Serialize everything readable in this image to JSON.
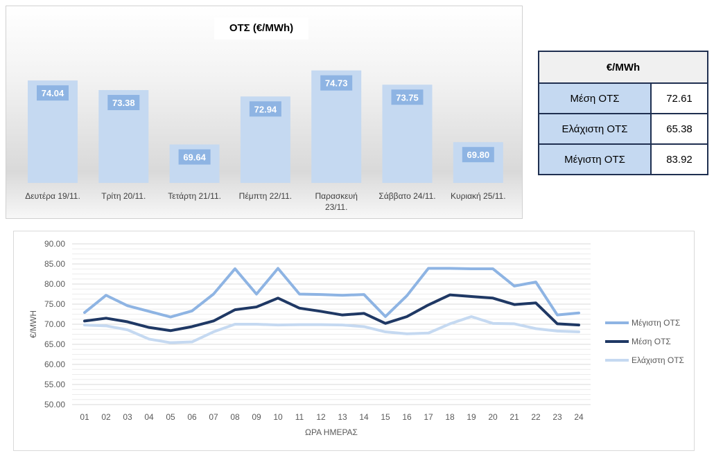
{
  "bar_chart": {
    "title": "ΟΤΣ (€/MWh)",
    "bar_color": "#c5d9f1",
    "label_bg": "#8eb4e3",
    "label_color": "#ffffff"
  },
  "summary_table": {
    "header": "€/MWh",
    "rows": [
      {
        "label": "Μέση ΟΤΣ",
        "value": "72.61"
      },
      {
        "label": "Ελάχιστη ΟΤΣ",
        "value": "65.38"
      },
      {
        "label": "Μέγιστη ΟΤΣ",
        "value": "83.92"
      }
    ]
  },
  "chart_data": [
    {
      "type": "bar",
      "title": "ΟΤΣ (€/MWh)",
      "categories": [
        "Δευτέρα 19/11.",
        "Τρίτη 20/11.",
        "Τετάρτη 21/11.",
        "Πέμπτη 22/11.",
        "Παρασκευή 23/11.",
        "Σάββατο 24/11.",
        "Κυριακή 25/11."
      ],
      "values": [
        74.04,
        73.38,
        69.64,
        72.94,
        74.73,
        73.75,
        69.8
      ],
      "ylim": [
        67,
        76
      ],
      "grid": false,
      "legend": "none"
    },
    {
      "type": "line",
      "xlabel": "ΩΡΑ ΗΜΕΡΑΣ",
      "ylabel": "€/MWH",
      "ylim": [
        50,
        90
      ],
      "yticks": [
        "50.00",
        "55.00",
        "60.00",
        "65.00",
        "70.00",
        "75.00",
        "80.00",
        "85.00",
        "90.00"
      ],
      "categories": [
        "01",
        "02",
        "03",
        "04",
        "05",
        "06",
        "07",
        "08",
        "09",
        "10",
        "11",
        "12",
        "13",
        "14",
        "15",
        "16",
        "17",
        "18",
        "19",
        "20",
        "21",
        "22",
        "23",
        "24"
      ],
      "grid": true,
      "legend": "right",
      "series": [
        {
          "name": "Μέγιστη ΟΤΣ",
          "color": "#8eb4e3",
          "values": [
            72.9,
            77.2,
            74.6,
            73.2,
            71.8,
            73.3,
            77.5,
            83.8,
            77.5,
            83.9,
            77.5,
            77.4,
            77.2,
            77.4,
            71.9,
            77.1,
            83.9,
            83.9,
            83.8,
            83.8,
            79.5,
            80.5,
            72.3,
            72.8
          ]
        },
        {
          "name": "Μέση ΟΤΣ",
          "color": "#1f3864",
          "values": [
            70.8,
            71.5,
            70.6,
            69.2,
            68.4,
            69.4,
            70.8,
            73.6,
            74.3,
            76.5,
            74.0,
            73.2,
            72.3,
            72.7,
            70.2,
            71.9,
            74.8,
            77.3,
            76.9,
            76.5,
            74.9,
            75.3,
            70.1,
            69.8
          ]
        },
        {
          "name": "Ελάχιστη ΟΤΣ",
          "color": "#c5d9f1",
          "values": [
            69.8,
            69.6,
            68.6,
            66.3,
            65.4,
            65.6,
            68.1,
            70.0,
            70.0,
            69.8,
            69.9,
            69.9,
            69.8,
            69.4,
            68.1,
            67.6,
            67.8,
            70.1,
            71.9,
            70.2,
            70.1,
            68.9,
            68.3,
            68.1
          ]
        }
      ]
    }
  ]
}
